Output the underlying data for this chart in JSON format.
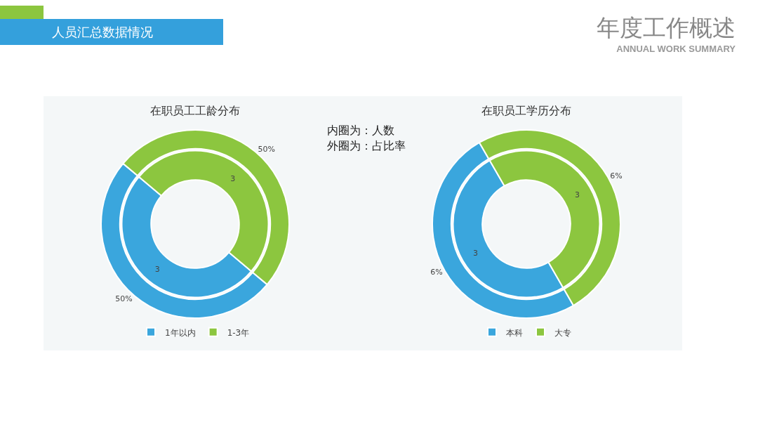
{
  "chart_data": [
    {
      "type": "donut",
      "title": "在职员工工龄分布",
      "categories": [
        "1年以内",
        "1-3年"
      ],
      "colors": [
        "#3aa6dd",
        "#8cc63f"
      ],
      "legend": "bottom",
      "annotations": [
        "人员汇总数据情况",
        "年度工作概述",
        "ANNUAL WORK SUMMARY",
        "内圈为：人数",
        "外圈为：占比率"
      ],
      "series": [
        {
          "values": [
            3,
            3
          ],
          "value_labels": [
            "3",
            "3"
          ]
        },
        {
          "values": [
            50,
            50
          ],
          "value_labels": [
            "50%",
            "50%"
          ]
        }
      ]
    },
    {
      "type": "donut",
      "title": "在职员工学历分布",
      "categories": [
        "本科",
        "大专"
      ],
      "colors": [
        "#3aa6dd",
        "#8cc63f"
      ],
      "legend": "bottom",
      "series": [
        {
          "values": [
            3,
            3
          ],
          "value_labels": [
            "3",
            "3"
          ]
        },
        {
          "values": [
            6,
            6
          ],
          "value_labels": [
            "6%",
            "6%"
          ]
        }
      ]
    }
  ]
}
